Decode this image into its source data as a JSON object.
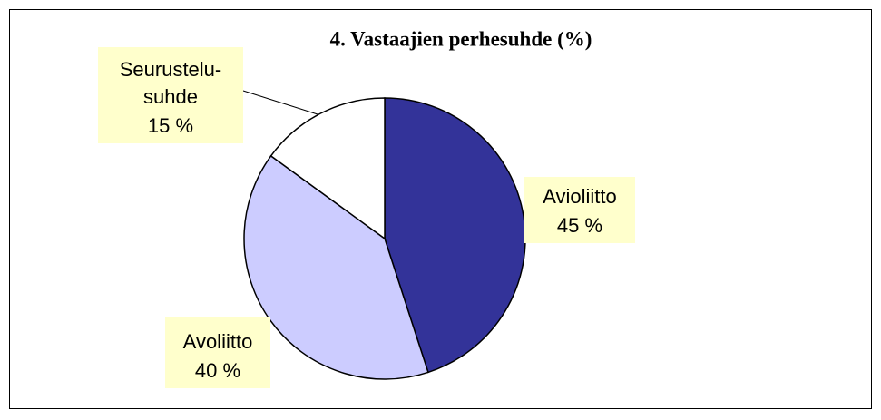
{
  "chart_data": {
    "type": "pie",
    "title": "4. Vastaajien perhesuhde (%)",
    "categories": [
      "Avioliitto",
      "Avoliitto",
      "Seurustelu-suhde"
    ],
    "values": [
      45,
      40,
      15
    ],
    "value_labels": [
      "45 %",
      "40 %",
      "15 %"
    ],
    "colors": [
      "#333399",
      "#ccccff",
      "#ffffff"
    ]
  }
}
